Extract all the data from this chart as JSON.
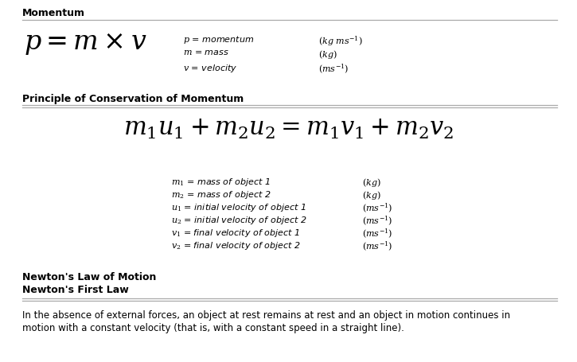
{
  "section1_header": "Momentum",
  "section1_formula": "$p = m \\times v$",
  "section1_vars": [
    [
      "$p$ = momentum",
      "$(kg\\ ms^{-1})$"
    ],
    [
      "$m$ = mass",
      "$(kg)$"
    ],
    [
      "$v$ = velocity",
      "$(ms^{-1})$"
    ]
  ],
  "section2_header": "Principle of Conservation of Momentum",
  "section2_formula": "$m_1u_1 + m_2u_2 = m_1v_1 + m_2v_2$",
  "section2_vars": [
    [
      "$m_1$ = mass of object 1",
      "$(kg)$"
    ],
    [
      "$m_2$ = mass of object 2",
      "$(kg)$"
    ],
    [
      "$u_1$ = initial velocity of object 1",
      "$(ms^{-1})$"
    ],
    [
      "$u_2$ = initial velocity of object 2",
      "$(ms^{-1})$"
    ],
    [
      "$v_1$ = final velocity of object 1",
      "$(ms^{-1})$"
    ],
    [
      "$v_2$ = final velocity of object 2",
      "$(ms^{-1})$"
    ]
  ],
  "section3_header1": "Newton's Law of Motion",
  "section3_header2": "Newton's First Law",
  "section3_text1": "In the absence of external forces, an object at rest remains at rest and an object in motion continues in",
  "section3_text2": "motion with a constant velocity (that is, with a constant speed in a straight line).",
  "line_color": "#aaaaaa",
  "header_fontsize": 9,
  "formula1_fontsize": 24,
  "formula2_fontsize": 22,
  "var_fontsize": 8,
  "body_fontsize": 8.5
}
